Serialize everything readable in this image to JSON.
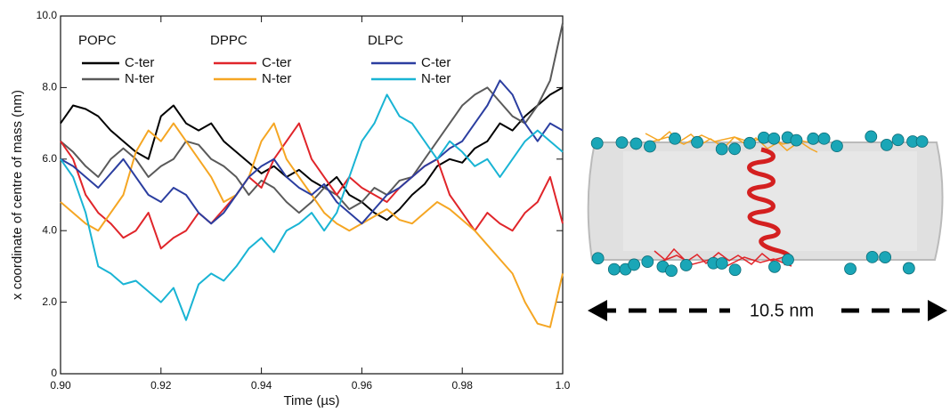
{
  "chart_data": {
    "type": "line",
    "xlabel": "Time (µs)",
    "ylabel": "x coordinate of centre of mass (nm)",
    "annotation": "10.5 nm",
    "legend_groups": [
      "POPC",
      "DPPC",
      "DLPC"
    ],
    "xlim": [
      0.9,
      1.0
    ],
    "ylim": [
      0,
      10
    ],
    "xticks": [
      {
        "value": 0.9,
        "label": "0.90"
      },
      {
        "value": 0.92,
        "label": "0.92"
      },
      {
        "value": 0.94,
        "label": "0.94"
      },
      {
        "value": 0.96,
        "label": "0.96"
      },
      {
        "value": 0.98,
        "label": "0.98"
      },
      {
        "value": 1.0,
        "label": "1.0"
      }
    ],
    "yticks": [
      0,
      {
        "value": 2,
        "label": "2.0"
      },
      {
        "value": 4,
        "label": "4.0"
      },
      {
        "value": 6,
        "label": "6.0"
      },
      {
        "value": 8,
        "label": "8.0"
      },
      {
        "value": 10,
        "label": "10.0"
      }
    ],
    "x": [
      0.9,
      0.9025,
      0.905,
      0.9075,
      0.91,
      0.9125,
      0.915,
      0.9175,
      0.92,
      0.9225,
      0.925,
      0.9275,
      0.93,
      0.9325,
      0.935,
      0.9375,
      0.94,
      0.9425,
      0.945,
      0.9475,
      0.95,
      0.9525,
      0.955,
      0.9575,
      0.96,
      0.9625,
      0.965,
      0.9675,
      0.97,
      0.9725,
      0.975,
      0.9775,
      0.98,
      0.9825,
      0.985,
      0.9875,
      0.99,
      0.9925,
      0.995,
      0.9975,
      1.0
    ],
    "series": [
      {
        "name": "C-ter",
        "color": "#000000",
        "values": [
          7.0,
          7.5,
          7.4,
          7.2,
          6.8,
          6.5,
          6.2,
          6.0,
          7.2,
          7.5,
          7.0,
          6.8,
          7.0,
          6.5,
          6.2,
          5.9,
          5.6,
          5.8,
          5.5,
          5.7,
          5.4,
          5.2,
          5.5,
          5.0,
          4.8,
          4.5,
          4.3,
          4.6,
          5.0,
          5.3,
          5.8,
          6.0,
          5.9,
          6.3,
          6.5,
          7.0,
          6.8,
          7.2,
          7.5,
          7.8,
          8.0
        ]
      },
      {
        "name": "N-ter",
        "color": "#5a5a5a",
        "values": [
          6.5,
          6.2,
          5.8,
          5.5,
          6.0,
          6.3,
          6.0,
          5.5,
          5.8,
          6.0,
          6.5,
          6.4,
          6.0,
          5.8,
          5.5,
          5.0,
          5.4,
          5.2,
          4.8,
          4.5,
          4.8,
          5.2,
          5.0,
          4.6,
          4.8,
          5.2,
          5.0,
          5.4,
          5.5,
          6.0,
          6.5,
          7.0,
          7.5,
          7.8,
          8.0,
          7.6,
          7.2,
          7.0,
          7.5,
          8.2,
          9.8
        ]
      },
      {
        "name": "C-ter",
        "color": "#e0252a",
        "values": [
          6.5,
          6.0,
          5.0,
          4.5,
          4.2,
          3.8,
          4.0,
          4.5,
          3.5,
          3.8,
          4.0,
          4.5,
          4.2,
          4.6,
          5.0,
          5.5,
          5.2,
          6.0,
          6.5,
          7.0,
          6.0,
          5.5,
          5.0,
          5.5,
          5.2,
          5.0,
          4.8,
          5.2,
          5.5,
          5.8,
          6.0,
          5.0,
          4.5,
          4.0,
          4.5,
          4.2,
          4.0,
          4.5,
          4.8,
          5.5,
          4.2
        ]
      },
      {
        "name": "N-ter",
        "color": "#f5a623",
        "values": [
          4.8,
          4.5,
          4.2,
          4.0,
          4.5,
          5.0,
          6.2,
          6.8,
          6.5,
          7.0,
          6.5,
          6.0,
          5.5,
          4.8,
          5.0,
          5.5,
          6.5,
          7.0,
          6.0,
          5.5,
          5.0,
          4.5,
          4.2,
          4.0,
          4.2,
          4.4,
          4.6,
          4.3,
          4.2,
          4.5,
          4.8,
          4.6,
          4.3,
          4.0,
          3.6,
          3.2,
          2.8,
          2.0,
          1.4,
          1.3,
          2.8
        ]
      },
      {
        "name": "C-ter",
        "color": "#2b3ea0",
        "values": [
          6.0,
          5.8,
          5.5,
          5.2,
          5.6,
          6.0,
          5.5,
          5.0,
          4.8,
          5.2,
          5.0,
          4.5,
          4.2,
          4.5,
          5.0,
          5.5,
          5.8,
          6.0,
          5.5,
          5.2,
          5.0,
          5.3,
          4.8,
          4.5,
          4.2,
          4.6,
          5.0,
          5.2,
          5.5,
          5.8,
          6.0,
          6.3,
          6.5,
          7.0,
          7.5,
          8.2,
          7.8,
          7.0,
          6.5,
          7.0,
          6.8
        ]
      },
      {
        "name": "N-ter",
        "color": "#19b4d4",
        "values": [
          6.0,
          5.5,
          4.5,
          3.0,
          2.8,
          2.5,
          2.6,
          2.3,
          2.0,
          2.4,
          1.5,
          2.5,
          2.8,
          2.6,
          3.0,
          3.5,
          3.8,
          3.4,
          4.0,
          4.2,
          4.5,
          4.0,
          4.5,
          5.5,
          6.5,
          7.0,
          7.8,
          7.2,
          7.0,
          6.5,
          6.0,
          6.5,
          6.2,
          5.8,
          6.0,
          5.5,
          6.0,
          6.5,
          6.8,
          6.5,
          6.2
        ]
      }
    ]
  }
}
